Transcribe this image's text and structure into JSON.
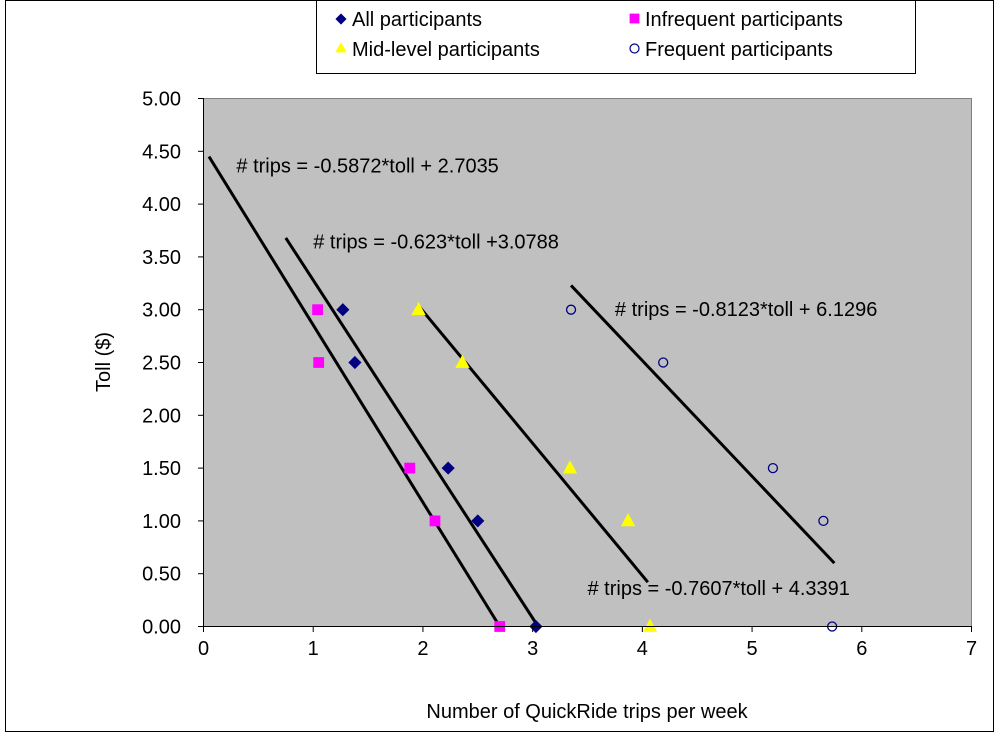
{
  "chart_data": {
    "type": "scatter",
    "xlabel": "Number of QuickRide trips per week",
    "ylabel": "Toll ($)",
    "xlim": [
      0,
      7
    ],
    "ylim": [
      0,
      5
    ],
    "x_ticks": [
      "0",
      "1",
      "2",
      "3",
      "4",
      "5",
      "6",
      "7"
    ],
    "y_ticks": [
      "0.00",
      "0.50",
      "1.00",
      "1.50",
      "2.00",
      "2.50",
      "3.00",
      "3.50",
      "4.00",
      "4.50",
      "5.00"
    ],
    "grid": false,
    "plot_background": "#c0c0c0",
    "legend_position": "top",
    "series": [
      {
        "name": "All participants",
        "marker": "diamond",
        "color": "#000080",
        "points": [
          {
            "x": 1.27,
            "y": 3.0
          },
          {
            "x": 1.38,
            "y": 2.5
          },
          {
            "x": 2.23,
            "y": 1.5
          },
          {
            "x": 2.5,
            "y": 1.0
          },
          {
            "x": 3.03,
            "y": 0.0
          }
        ]
      },
      {
        "name": "Infrequent participants",
        "marker": "square",
        "color": "#ff00ff",
        "points": [
          {
            "x": 1.04,
            "y": 3.0
          },
          {
            "x": 1.05,
            "y": 2.5
          },
          {
            "x": 1.88,
            "y": 1.5
          },
          {
            "x": 2.11,
            "y": 1.0
          },
          {
            "x": 2.7,
            "y": 0.0
          }
        ]
      },
      {
        "name": "Mid-level participants",
        "marker": "triangle",
        "color": "#ffff00",
        "points": [
          {
            "x": 1.96,
            "y": 3.0
          },
          {
            "x": 2.36,
            "y": 2.5
          },
          {
            "x": 3.34,
            "y": 1.5
          },
          {
            "x": 3.87,
            "y": 1.0
          },
          {
            "x": 4.07,
            "y": 0.0
          }
        ]
      },
      {
        "name": "Frequent participants",
        "marker": "circle",
        "color": "#000080",
        "points": [
          {
            "x": 3.35,
            "y": 3.0
          },
          {
            "x": 4.19,
            "y": 2.5
          },
          {
            "x": 5.19,
            "y": 1.5
          },
          {
            "x": 5.65,
            "y": 1.0
          },
          {
            "x": 5.73,
            "y": 0.0
          }
        ]
      }
    ],
    "trendlines": [
      {
        "x1": 0.05,
        "y1": 4.45,
        "x2": 2.7,
        "y2": 0.0
      },
      {
        "x1": 0.75,
        "y1": 3.68,
        "x2": 3.05,
        "y2": 0.0
      },
      {
        "x1": 1.95,
        "y1": 3.05,
        "x2": 4.05,
        "y2": 0.42
      },
      {
        "x1": 3.35,
        "y1": 3.23,
        "x2": 5.75,
        "y2": 0.6
      }
    ],
    "annotations": [
      {
        "text": "# trips = -0.5872*toll + 2.7035",
        "x": 0.3,
        "y": 4.3
      },
      {
        "text": "# trips = -0.623*toll +3.0788",
        "x": 1.0,
        "y": 3.58
      },
      {
        "text": "# trips = -0.8123*toll + 6.1296",
        "x": 3.75,
        "y": 2.94
      },
      {
        "text": "# trips = -0.7607*toll + 4.3391",
        "x": 3.5,
        "y": 0.3
      }
    ]
  }
}
